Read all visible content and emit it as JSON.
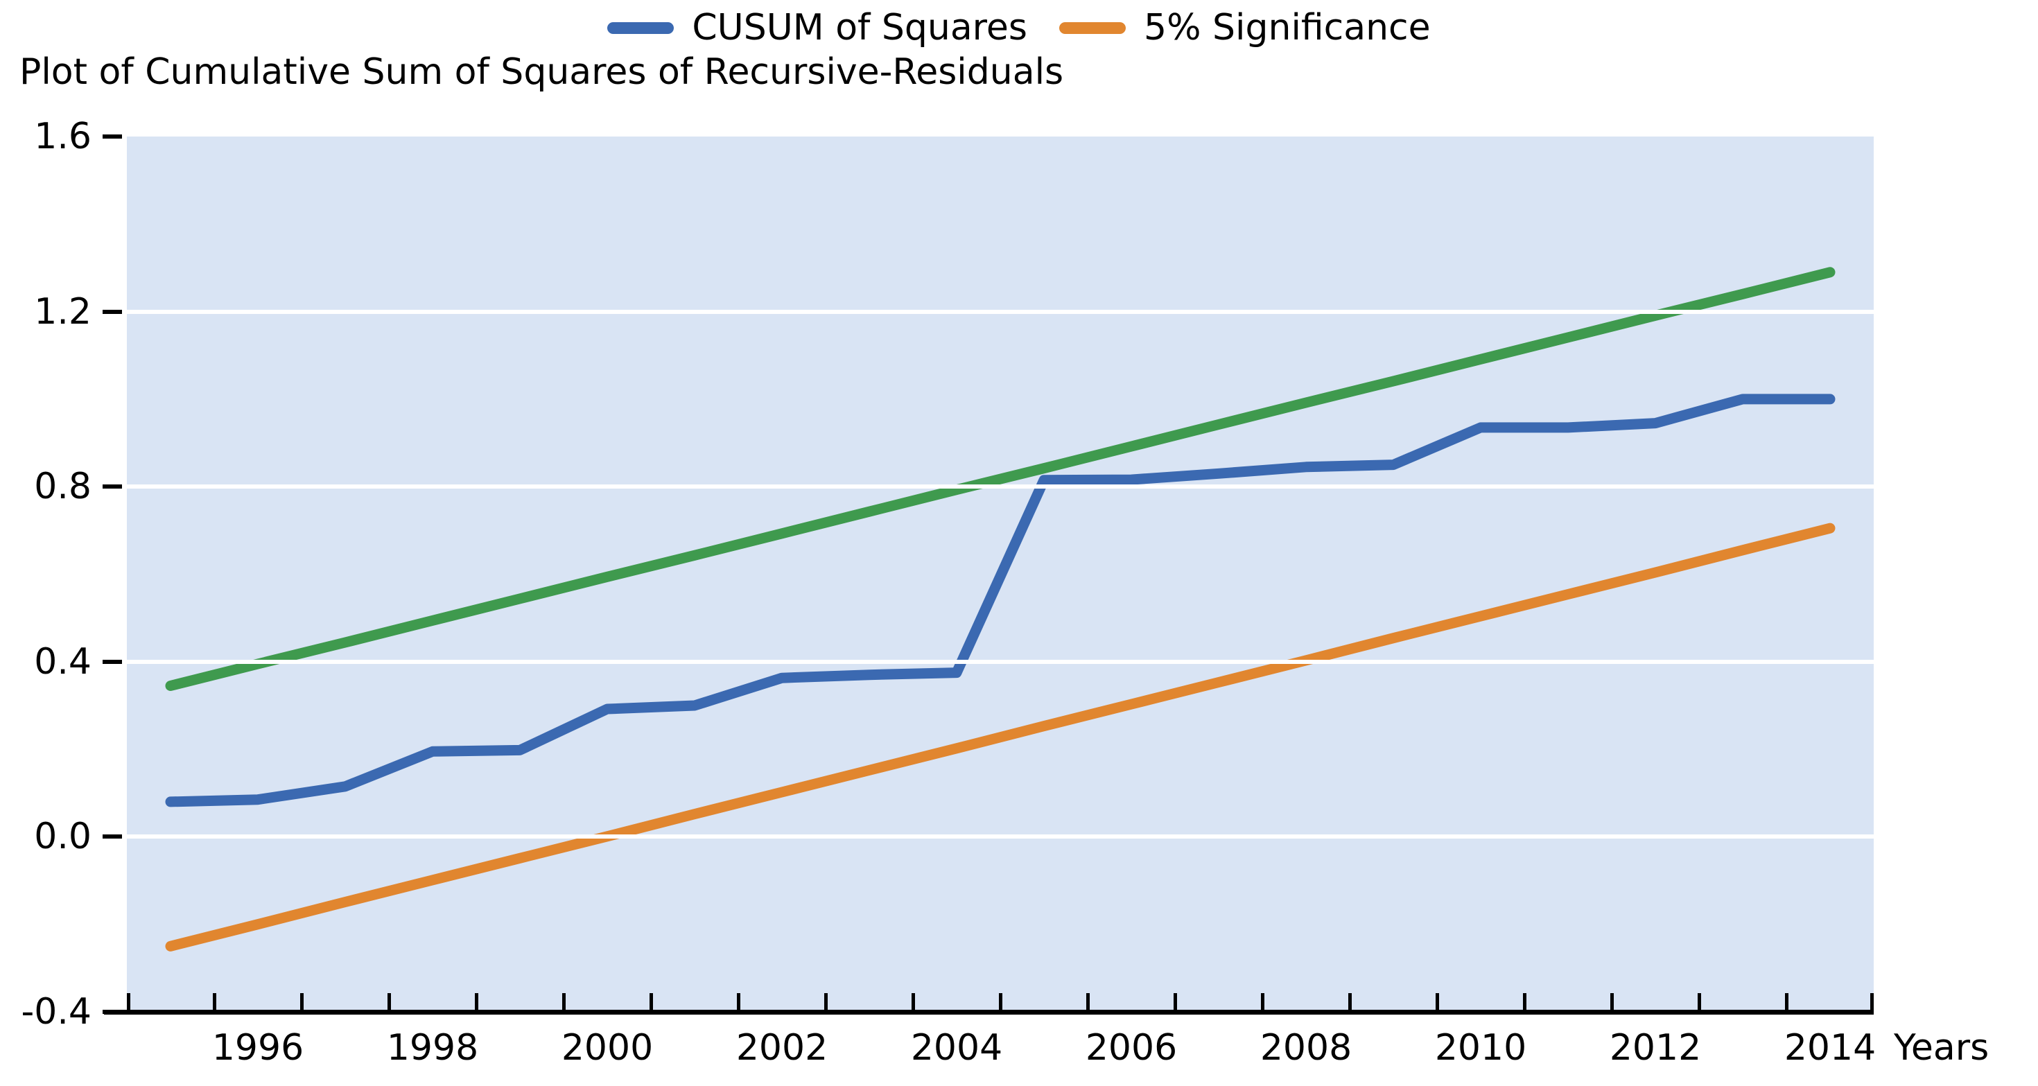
{
  "title": "Plot of Cumulative Sum of Squares of Recursive-Residuals",
  "legend": {
    "items": [
      {
        "label": "CUSUM of Squares",
        "color": "#3B69B1"
      },
      {
        "label": "5% Significance",
        "color": "#E1862F"
      }
    ]
  },
  "axes": {
    "y_tick_labels": [
      "1.6",
      "1.2",
      "0.8",
      "0.4",
      "0.0",
      "-0.4"
    ],
    "y_tick_values": [
      1.6,
      1.2,
      0.8,
      0.4,
      0.0,
      -0.4
    ],
    "x_tick_labels": [
      "1996",
      "1998",
      "2000",
      "2002",
      "2004",
      "2006",
      "2008",
      "2010",
      "2012",
      "2014"
    ],
    "x_axis_label": "Years"
  },
  "colors": {
    "cusum_line": "#3B69B1",
    "upper_bound_line": "#3F9A4E",
    "lower_bound_line": "#E1862F",
    "plot_background": "#D9E4F4",
    "gridline": "#ffffff",
    "axis": "#000000"
  },
  "chart_data": {
    "type": "line",
    "title": "Plot of Cumulative Sum of Squares of Recursive-Residuals",
    "xlabel": "Years",
    "ylabel": "",
    "x": [
      1995,
      1996,
      1997,
      1998,
      1999,
      2000,
      2001,
      2002,
      2003,
      2004,
      2005,
      2006,
      2007,
      2008,
      2009,
      2010,
      2011,
      2012,
      2013,
      2014
    ],
    "xlim": [
      1995,
      2015
    ],
    "ylim": [
      -0.4,
      1.6
    ],
    "yticks": [
      1.6,
      1.2,
      0.8,
      0.4,
      0.0,
      -0.4
    ],
    "gridline_values": [
      1.2,
      0.8,
      0.4,
      0.0
    ],
    "grid": "horizontal white gridlines on light blue panel",
    "legend_position": "top-center",
    "series": [
      {
        "name": "5% Significance (upper bound)",
        "color": "#3F9A4E",
        "values": [
          0.345,
          0.395,
          0.444,
          0.494,
          0.544,
          0.594,
          0.643,
          0.693,
          0.743,
          0.793,
          0.842,
          0.892,
          0.942,
          0.992,
          1.041,
          1.091,
          1.141,
          1.191,
          1.24,
          1.29
        ]
      },
      {
        "name": "5% Significance (lower bound)",
        "color": "#E1862F",
        "values": [
          -0.25,
          -0.2,
          -0.149,
          -0.099,
          -0.049,
          0.001,
          0.052,
          0.102,
          0.152,
          0.202,
          0.253,
          0.303,
          0.353,
          0.403,
          0.454,
          0.504,
          0.554,
          0.604,
          0.655,
          0.705
        ]
      },
      {
        "name": "CUSUM of Squares",
        "color": "#3B69B1",
        "values": [
          0.08,
          0.085,
          0.115,
          0.195,
          0.198,
          0.292,
          0.3,
          0.363,
          0.37,
          0.375,
          0.815,
          0.816,
          0.83,
          0.845,
          0.85,
          0.935,
          0.935,
          0.945,
          1.0,
          1.0
        ]
      }
    ]
  }
}
